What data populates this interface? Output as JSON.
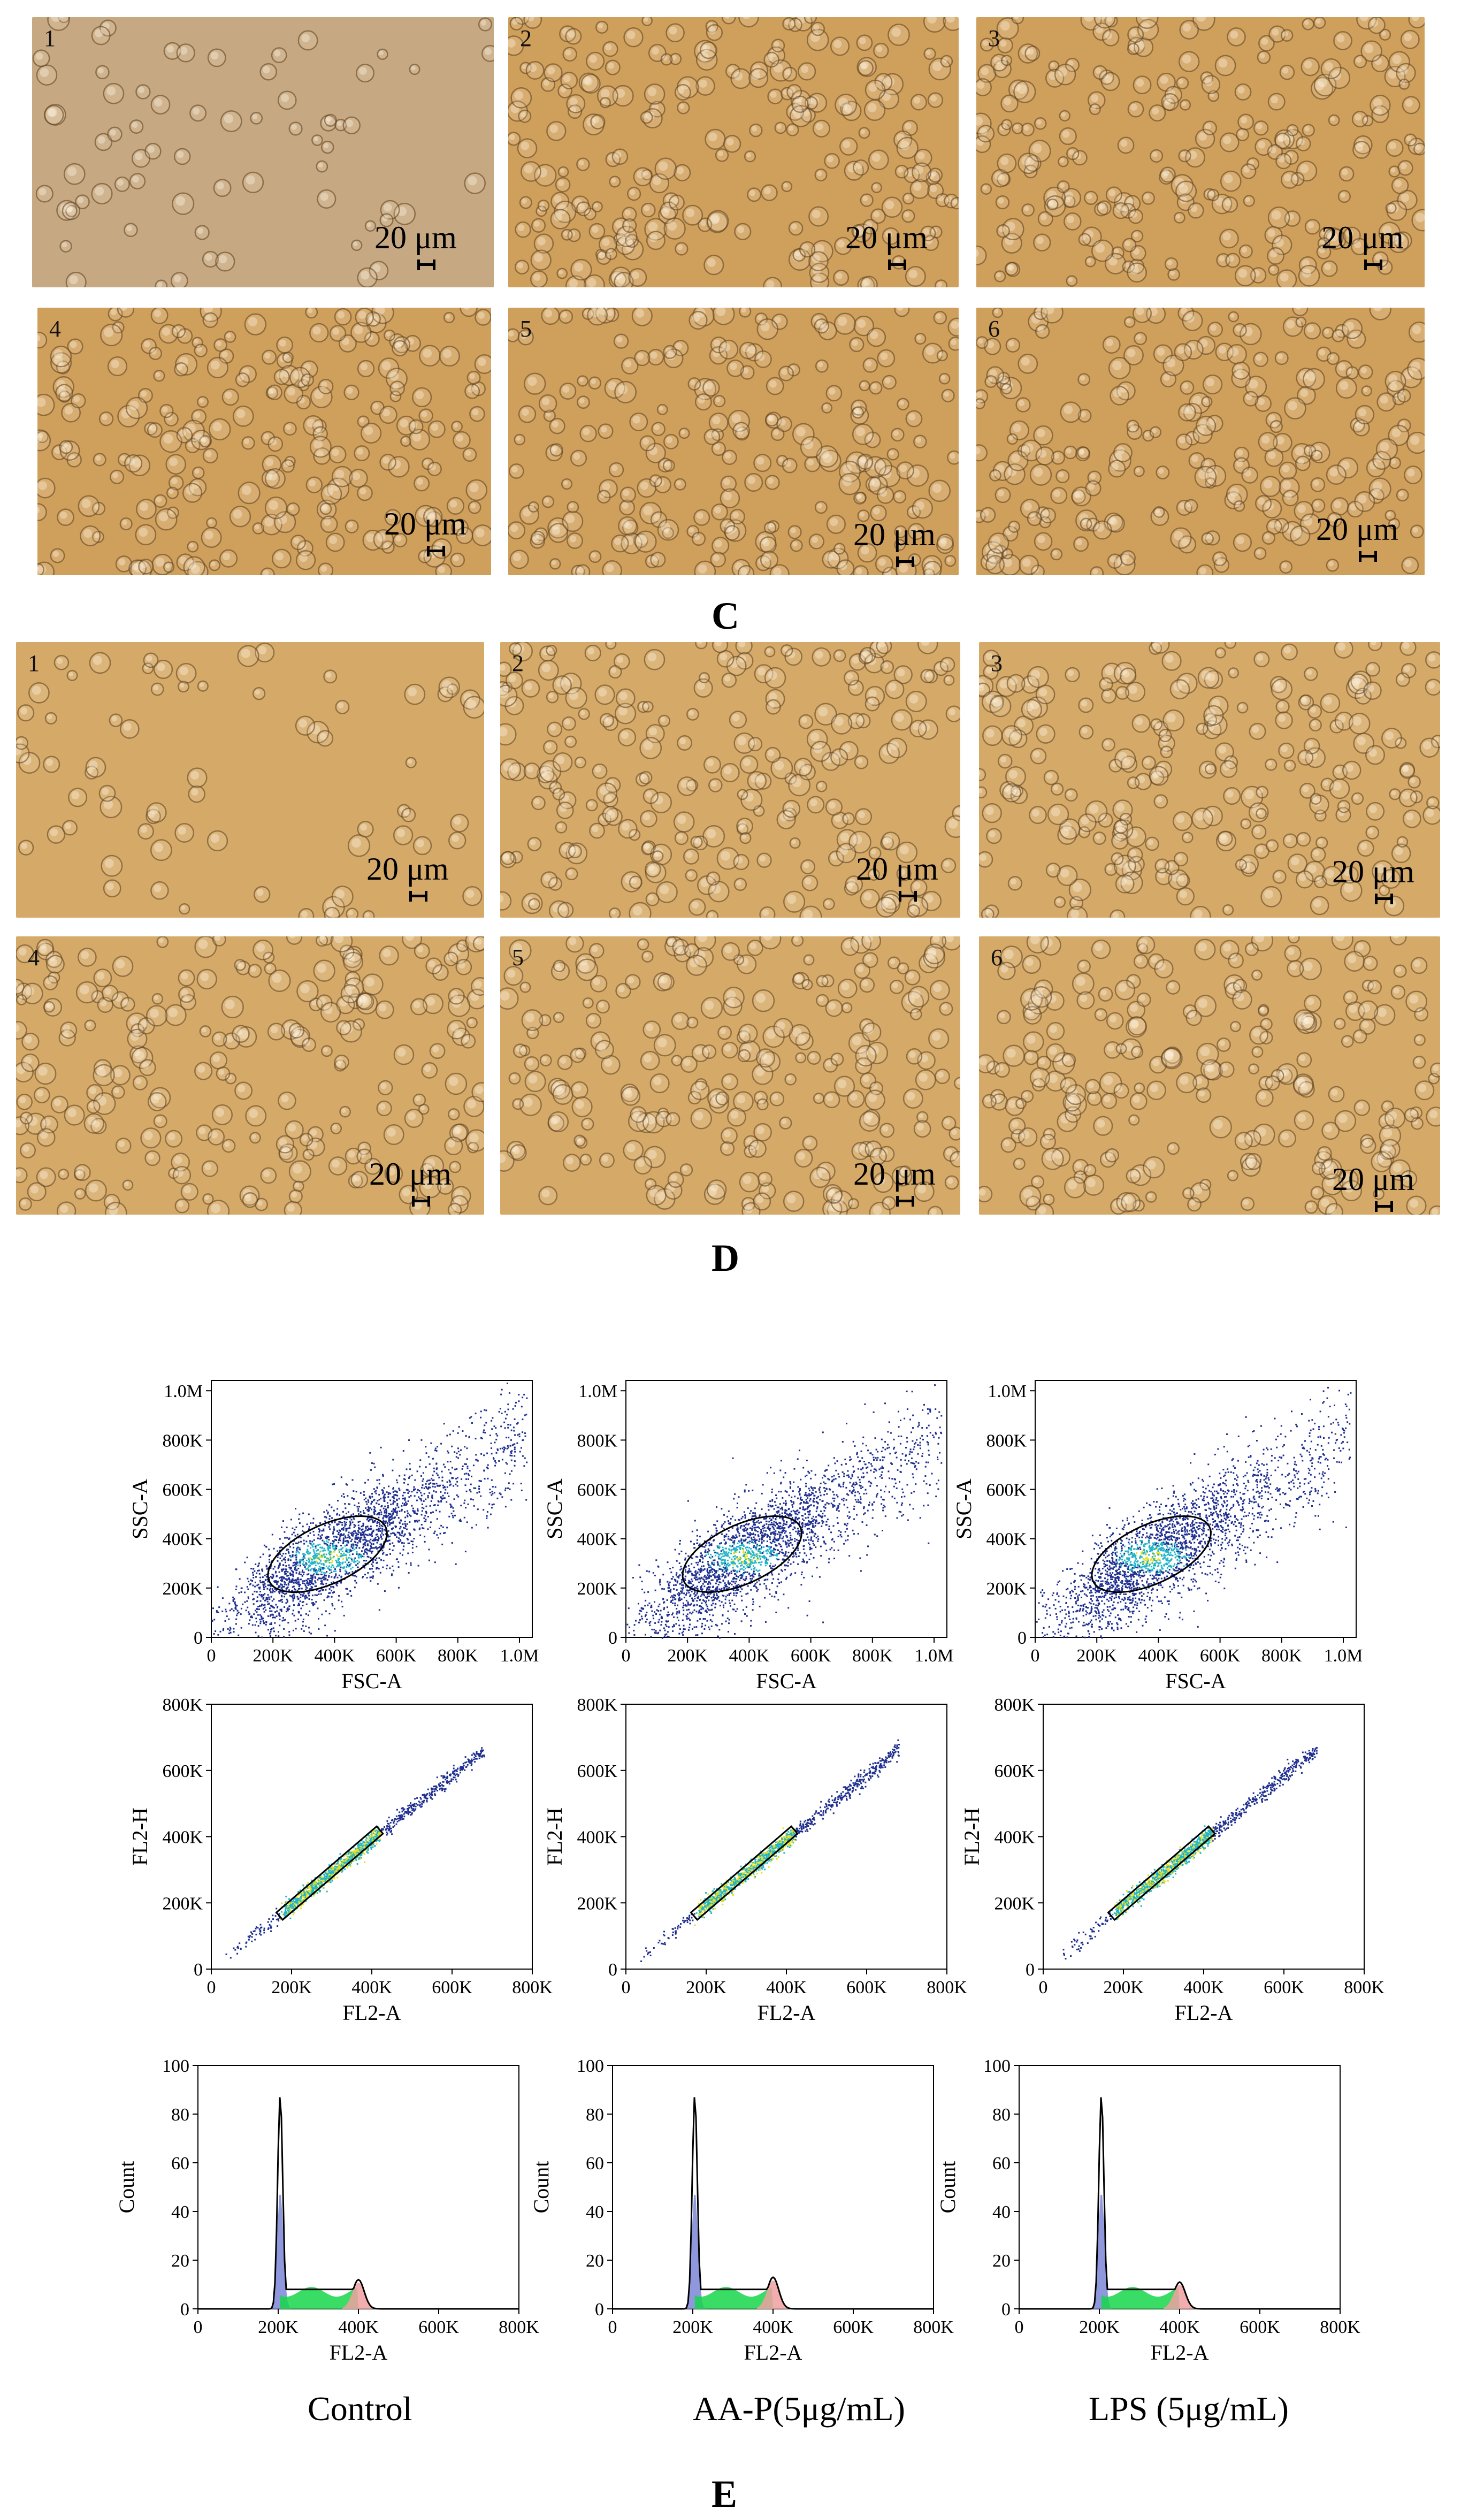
{
  "colors": {
    "micro_c": "#cf9f5c",
    "micro_d": "#d5a968",
    "micro_c_first": "#c6a882",
    "dens_low": "#1f2f8f",
    "dens_mid": "#22b5c8",
    "dens_high": "#e8e020",
    "g1_fill": "#7b86d6",
    "s_fill": "#16d64a",
    "g2_fill": "#f0a0a0"
  },
  "panel_c": {
    "letter": "C",
    "scale_label": "20 μm",
    "panels": [
      {
        "number": "1"
      },
      {
        "number": "2"
      },
      {
        "number": "3"
      },
      {
        "number": "4"
      },
      {
        "number": "5"
      },
      {
        "number": "6"
      }
    ]
  },
  "panel_d": {
    "letter": "D",
    "scale_label": "20 μm",
    "panels": [
      {
        "number": "1"
      },
      {
        "number": "2"
      },
      {
        "number": "3"
      },
      {
        "number": "4"
      },
      {
        "number": "5"
      },
      {
        "number": "6"
      }
    ]
  },
  "panel_e": {
    "letter": "E",
    "conditions": [
      "Control",
      "AA-P(5μg/mL)",
      "LPS (5μg/mL)"
    ]
  },
  "chart_data": [
    {
      "type": "scatter",
      "row": "FSC-SSC",
      "xlabel": "FSC-A",
      "ylabel": "SSC-A",
      "xticks": [
        "0",
        "200K",
        "400K",
        "600K",
        "800K",
        "1.0M"
      ],
      "yticks": [
        "0",
        "200K",
        "400K",
        "600K",
        "800K",
        "1.0M"
      ],
      "xlim": [
        0,
        1050000
      ],
      "ylim": [
        0,
        1050000
      ],
      "gate": {
        "shape": "ellipse",
        "center": [
          380000,
          340000
        ],
        "rx": 210000,
        "ry": 120000,
        "angle_deg": -25
      }
    },
    {
      "type": "scatter",
      "row": "FL2-A vs FL2-H",
      "xlabel": "FL2-A",
      "ylabel": "FL2-H",
      "xticks": [
        "0",
        "200K",
        "400K",
        "600K",
        "800K"
      ],
      "yticks": [
        "0",
        "200K",
        "400K",
        "600K",
        "800K"
      ],
      "xlim": [
        0,
        800000
      ],
      "ylim": [
        0,
        800000
      ],
      "gate": {
        "shape": "rectangle",
        "from": [
          170000,
          160000
        ],
        "to": [
          420000,
          420000
        ]
      }
    },
    {
      "type": "area",
      "row": "Histogram",
      "xlabel": "FL2-A",
      "ylabel": "Count",
      "xticks": [
        "0",
        "200K",
        "400K",
        "600K",
        "800K"
      ],
      "yticks": [
        "0",
        "20",
        "40",
        "60",
        "80",
        "100"
      ],
      "xlim": [
        0,
        800000
      ],
      "ylim": [
        0,
        100
      ],
      "histograms": [
        {
          "g1_peak_x": 205000,
          "g1_peak_count": 88,
          "g2_peak_x": 400000,
          "g2_peak_count": 12
        },
        {
          "g1_peak_x": 205000,
          "g1_peak_count": 88,
          "g2_peak_x": 400000,
          "g2_peak_count": 13
        },
        {
          "g1_peak_x": 205000,
          "g1_peak_count": 88,
          "g2_peak_x": 400000,
          "g2_peak_count": 11
        }
      ]
    }
  ]
}
